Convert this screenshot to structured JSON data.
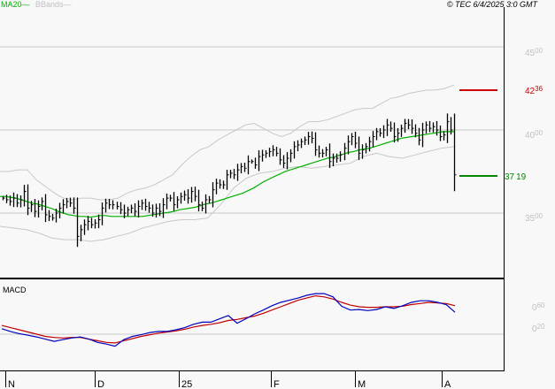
{
  "header": {
    "legend_ma": "MA20",
    "legend_bb": "BBands",
    "copyright": "© TEC 6/4/2025 3:0 GMT"
  },
  "colors": {
    "background": "#f8f8f8",
    "ma20": "#00b000",
    "bbands": "#c0c0c0",
    "bars": "#000000",
    "resistance": "#cc0000",
    "support": "#008800",
    "macd": "#0000c0",
    "signal": "#c00000"
  },
  "main_panel": {
    "y_labels": [
      {
        "int": "45",
        "dec": "00",
        "value": 45.0
      },
      {
        "int": "40",
        "dec": "00",
        "value": 40.0
      },
      {
        "int": "35",
        "dec": "00",
        "value": 35.0
      }
    ],
    "resistance": {
      "int": "42",
      "dec": "36",
      "value": 42.36
    },
    "support": {
      "int": "37",
      "dec": "19",
      "value": 37.19
    }
  },
  "macd_panel": {
    "title": "MACD",
    "y_labels": [
      {
        "int": "0",
        "dec": "60",
        "value": 0.6
      },
      {
        "int": "0",
        "dec": "20",
        "value": 0.2
      }
    ]
  },
  "x_axis": {
    "labels": [
      "N",
      "D",
      "25",
      "F",
      "M",
      "A"
    ]
  },
  "chart_data": [
    {
      "type": "ohlc",
      "title": "Price with MA20 and Bollinger Bands",
      "legend": [
        "MA20",
        "BBands"
      ],
      "x_ticks": [
        "N",
        "D",
        "25",
        "F",
        "M",
        "A"
      ],
      "y_ticks": [
        35.0,
        40.0,
        45.0
      ],
      "ylim": [
        32.2,
        47.3
      ],
      "grid": true,
      "annotations": [
        {
          "label": "42.36",
          "type": "resistance",
          "color": "#cc0000"
        },
        {
          "label": "37.19",
          "type": "support",
          "color": "#008800"
        }
      ],
      "close": [
        35.9,
        35.8,
        35.7,
        35.9,
        35.6,
        35.8,
        36.3,
        35.3,
        35.5,
        35.1,
        35.4,
        35.7,
        34.9,
        34.8,
        34.7,
        35.0,
        35.3,
        35.5,
        35.7,
        35.6,
        35.3,
        33.6,
        34.0,
        34.3,
        34.5,
        34.3,
        34.4,
        34.6,
        35.3,
        35.6,
        35.5,
        35.5,
        35.4,
        35.2,
        35.0,
        35.2,
        35.3,
        35.1,
        35.4,
        35.6,
        35.4,
        35.3,
        35.0,
        35.3,
        35.1,
        35.5,
        35.9,
        35.9,
        35.5,
        35.8,
        36.0,
        36.1,
        35.9,
        36.3,
        36.0,
        35.5,
        35.3,
        35.8,
        35.8,
        36.4,
        36.8,
        36.7,
        36.7,
        37.3,
        37.4,
        37.3,
        37.6,
        37.8,
        37.7,
        38.1,
        38.1,
        37.9,
        38.4,
        38.5,
        38.6,
        38.7,
        38.8,
        38.6,
        38.2,
        38.0,
        38.3,
        38.6,
        39.0,
        39.1,
        39.3,
        39.4,
        39.6,
        39.5,
        38.8,
        38.6,
        38.6,
        38.8,
        38.1,
        38.3,
        38.3,
        38.5,
        38.9,
        39.3,
        39.6,
        39.2,
        38.6,
        38.8,
        39.0,
        39.3,
        39.6,
        39.9,
        39.8,
        40.0,
        40.3,
        40.1,
        39.6,
        39.8,
        40.1,
        40.4,
        40.3,
        40.1,
        39.8,
        39.4,
        40.0,
        40.3,
        40.1,
        40.2,
        40.0,
        39.6,
        39.7,
        40.5,
        40.0,
        37.3
      ],
      "ma20": [
        36.0,
        36.0,
        35.95,
        35.9,
        35.8,
        35.7,
        35.6,
        35.55,
        35.45,
        35.35,
        35.25,
        35.1,
        35.0,
        34.9,
        34.85,
        34.8,
        34.8,
        34.75,
        34.8,
        34.85,
        34.85,
        34.8,
        34.8,
        34.8,
        34.8,
        34.8,
        34.8,
        34.8,
        34.85,
        34.9,
        34.95,
        35.0,
        35.05,
        35.1,
        35.2,
        35.25,
        35.3,
        35.35,
        35.45,
        35.55,
        35.6,
        35.7,
        35.8,
        35.9,
        36.0,
        36.1,
        36.2,
        36.35,
        36.5,
        36.7,
        36.9,
        37.05,
        37.2,
        37.35,
        37.5,
        37.6,
        37.7,
        37.8,
        37.9,
        38.0,
        38.1,
        38.2,
        38.3,
        38.35,
        38.45,
        38.55,
        38.65,
        38.7,
        38.8,
        38.85,
        38.9,
        39.0,
        39.1,
        39.2,
        39.3,
        39.4,
        39.5,
        39.55,
        39.6,
        39.65,
        39.7,
        39.75,
        39.8,
        39.85,
        39.9,
        39.9,
        39.9
      ],
      "bb_upper": [
        37.5,
        37.5,
        37.6,
        37.6,
        37.0,
        36.6,
        36.2,
        35.9,
        35.8,
        35.9,
        35.9,
        35.8,
        35.8,
        35.9,
        36.2,
        36.4,
        36.5,
        36.7,
        37.0,
        37.3,
        37.9,
        38.4,
        38.8,
        39.0,
        39.4,
        39.7,
        40.0,
        40.3,
        40.4,
        40.1,
        39.8,
        39.6,
        39.8,
        40.2,
        40.5,
        40.5,
        40.6,
        40.8,
        41.0,
        41.2,
        41.3,
        41.3,
        41.6,
        41.9,
        42.0,
        42.2,
        42.3,
        42.4,
        42.4,
        42.5,
        42.7
      ],
      "bb_lower": [
        34.2,
        34.1,
        34.0,
        33.8,
        33.5,
        33.4,
        33.4,
        33.3,
        33.4,
        33.6,
        33.8,
        34.1,
        34.3,
        34.5,
        34.6,
        34.6,
        34.7,
        35.5,
        36.5,
        37.1,
        37.4,
        37.5,
        37.7,
        37.8,
        37.7,
        37.8,
        37.9,
        38.0,
        38.4,
        38.6,
        38.4,
        38.3,
        38.5,
        38.7,
        38.9,
        39.0
      ]
    },
    {
      "type": "line",
      "title": "MACD",
      "series": [
        {
          "name": "MACD",
          "color": "#0000c0"
        },
        {
          "name": "Signal",
          "color": "#c00000"
        }
      ],
      "y_ticks": [
        0.2,
        0.6
      ],
      "zero_line": true,
      "macd_values": [
        0.1,
        0.05,
        0.01,
        -0.02,
        -0.05,
        -0.09,
        -0.13,
        -0.1,
        -0.07,
        -0.05,
        -0.09,
        -0.15,
        -0.18,
        -0.22,
        -0.1,
        -0.04,
        -0.01,
        0.03,
        0.05,
        0.05,
        0.08,
        0.12,
        0.18,
        0.22,
        0.22,
        0.28,
        0.34,
        0.2,
        0.28,
        0.37,
        0.44,
        0.52,
        0.58,
        0.62,
        0.66,
        0.71,
        0.74,
        0.74,
        0.68,
        0.51,
        0.44,
        0.45,
        0.43,
        0.45,
        0.5,
        0.47,
        0.52,
        0.58,
        0.61,
        0.61,
        0.58,
        0.54,
        0.4
      ],
      "signal_values": [
        0.16,
        0.12,
        0.08,
        0.04,
        0.0,
        -0.04,
        -0.06,
        -0.07,
        -0.06,
        -0.06,
        -0.09,
        -0.12,
        -0.15,
        -0.16,
        -0.12,
        -0.08,
        -0.04,
        -0.01,
        0.02,
        0.04,
        0.06,
        0.09,
        0.13,
        0.16,
        0.18,
        0.21,
        0.25,
        0.27,
        0.3,
        0.33,
        0.38,
        0.44,
        0.5,
        0.56,
        0.62,
        0.66,
        0.7,
        0.68,
        0.64,
        0.58,
        0.53,
        0.5,
        0.49,
        0.49,
        0.5,
        0.5,
        0.51,
        0.54,
        0.56,
        0.58,
        0.57,
        0.56,
        0.52
      ]
    }
  ]
}
